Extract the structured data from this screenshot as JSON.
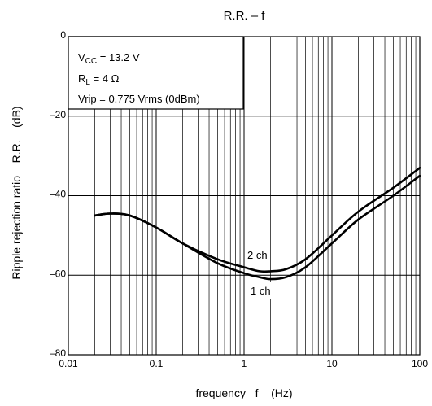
{
  "chart_data": {
    "type": "line",
    "title": "R.R. – f",
    "xlabel": "frequency   f    (Hz)",
    "ylabel": "Ripple rejection ratio    R.R.    (dB)",
    "x_scale": "log",
    "xlim": [
      0.01,
      100
    ],
    "ylim": [
      -80,
      0
    ],
    "grid": true,
    "x_ticks": [
      "0.01",
      "0.1",
      "1",
      "10",
      "100"
    ],
    "y_ticks": [
      "0",
      "–20",
      "–40",
      "–60",
      "–80"
    ],
    "conditions": {
      "vcc_main": "V",
      "vcc_sub": "CC",
      "vcc_value": " = 13.2 V",
      "rl_main": "R",
      "rl_sub": "L",
      "rl_value": " = 4 Ω",
      "vrip": "Vrip = 0.775 Vrms (0dBm)"
    },
    "series": [
      {
        "name": "2 ch",
        "x": [
          0.02,
          0.03,
          0.05,
          0.1,
          0.2,
          0.5,
          1,
          1.5,
          2,
          3,
          5,
          10,
          20,
          50,
          100
        ],
        "y": [
          -45,
          -44.5,
          -45,
          -48,
          -52,
          -56,
          -58,
          -59,
          -59,
          -58.5,
          -56,
          -50,
          -44,
          -38,
          -33
        ]
      },
      {
        "name": "1 ch",
        "x": [
          0.02,
          0.03,
          0.05,
          0.1,
          0.2,
          0.5,
          1,
          1.5,
          2,
          3,
          5,
          10,
          20,
          50,
          100
        ],
        "y": [
          -45,
          -44.5,
          -45,
          -48,
          -52,
          -57,
          -59.5,
          -60.5,
          -61,
          -60.5,
          -58,
          -52,
          -46,
          -40,
          -35
        ]
      }
    ],
    "annotations": [
      "2 ch",
      "1 ch"
    ]
  },
  "colors": {
    "line": "#000000",
    "grid": "#000000",
    "background": "#ffffff"
  }
}
